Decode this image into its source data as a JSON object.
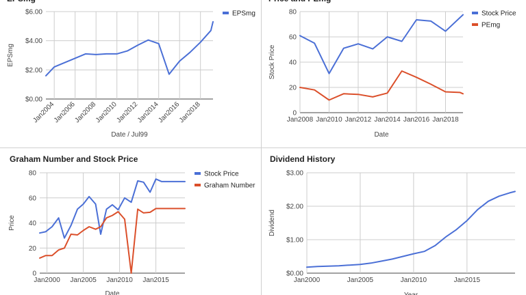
{
  "chart_data": [
    {
      "id": "eps",
      "type": "line",
      "title": "EPSmg",
      "xlabel": "Date / Jul99",
      "ylabel": "EPSmg",
      "xlim": [
        2003.2,
        2019.2
      ],
      "ylim": [
        0,
        6
      ],
      "y_ticks": [
        "$0.00",
        "$2.00",
        "$4.00",
        "$6.00"
      ],
      "y_tick_values": [
        0,
        2,
        4,
        6
      ],
      "x_ticks": [
        "Jan2004",
        "Jan2006",
        "Jan2008",
        "Jan2010",
        "Jan2012",
        "Jan2014",
        "Jan2016",
        "Jan2018"
      ],
      "x_tick_values": [
        2004,
        2006,
        2008,
        2010,
        2012,
        2014,
        2016,
        2018
      ],
      "x_tick_rotated": true,
      "legend_position": "right",
      "series": [
        {
          "name": "EPSmg",
          "color": "#4a6fd6",
          "x": [
            2003.2,
            2004.0,
            2005.0,
            2006.0,
            2007.0,
            2008.0,
            2009.0,
            2010.0,
            2011.0,
            2012.0,
            2013.0,
            2014.0,
            2015.0,
            2016.0,
            2017.0,
            2018.0,
            2019.0,
            2019.2
          ],
          "y": [
            1.6,
            2.2,
            2.5,
            2.8,
            3.1,
            3.05,
            3.1,
            3.1,
            3.3,
            3.7,
            4.05,
            3.8,
            1.7,
            2.6,
            3.2,
            3.9,
            4.7,
            5.3
          ]
        }
      ]
    },
    {
      "id": "pe",
      "type": "line",
      "title": "Price and PEmg",
      "xlabel": "Date",
      "ylabel": "Stock Price",
      "xlim": [
        2008,
        2019.2
      ],
      "ylim": [
        0,
        80
      ],
      "y_ticks": [
        "0",
        "20",
        "40",
        "60",
        "80"
      ],
      "y_tick_values": [
        0,
        20,
        40,
        60,
        80
      ],
      "x_ticks": [
        "Jan2008",
        "Jan2010",
        "Jan2012",
        "Jan2014",
        "Jan2016",
        "Jan2018"
      ],
      "x_tick_values": [
        2008,
        2010,
        2012,
        2014,
        2016,
        2018
      ],
      "x_tick_rotated": false,
      "legend_position": "right",
      "series": [
        {
          "name": "Stock Price",
          "color": "#4a6fd6",
          "x": [
            2008.0,
            2009.0,
            2010.0,
            2011.0,
            2012.0,
            2013.0,
            2014.0,
            2015.0,
            2016.0,
            2017.0,
            2018.0,
            2019.2
          ],
          "y": [
            61,
            55,
            31,
            51,
            54.5,
            50.5,
            60,
            56.5,
            73.5,
            72.5,
            64.5,
            77.5
          ]
        },
        {
          "name": "PEmg",
          "color": "#db4f2a",
          "x": [
            2008.0,
            2009.0,
            2010.0,
            2011.0,
            2012.0,
            2013.0,
            2014.0,
            2015.0,
            2016.0,
            2017.0,
            2018.0,
            2019.0,
            2019.2
          ],
          "y": [
            20,
            18,
            10,
            15,
            14.5,
            12.5,
            15.5,
            33,
            28,
            22.5,
            16.5,
            16,
            15
          ]
        }
      ]
    },
    {
      "id": "graham",
      "type": "line",
      "title": "Graham Number and Stock Price",
      "xlabel": "Date",
      "ylabel": "Price",
      "xlim": [
        1999,
        2019
      ],
      "ylim": [
        0,
        80
      ],
      "y_ticks": [
        "0",
        "20",
        "40",
        "60",
        "80"
      ],
      "y_tick_values": [
        0,
        20,
        40,
        60,
        80
      ],
      "x_ticks": [
        "Jan2000",
        "Jan2005",
        "Jan2010",
        "Jan2015"
      ],
      "x_tick_values": [
        2000,
        2005,
        2010,
        2015
      ],
      "x_tick_rotated": false,
      "legend_position": "right",
      "series": [
        {
          "name": "Stock Price",
          "color": "#4a6fd6",
          "x": [
            1999.0,
            1999.8,
            2000.7,
            2001.6,
            2002.4,
            2003.3,
            2004.2,
            2005.0,
            2005.8,
            2006.7,
            2007.4,
            2008.2,
            2009.0,
            2009.8,
            2010.7,
            2011.6,
            2012.5,
            2013.3,
            2014.2,
            2015.0,
            2015.8,
            2016.8,
            2017.6,
            2018.5,
            2019.0
          ],
          "y": [
            32,
            33,
            37,
            44,
            28,
            38,
            51,
            55,
            61,
            55,
            31,
            51,
            54.5,
            50.5,
            60,
            56.5,
            73.5,
            72.5,
            64.5,
            75,
            73,
            73,
            73,
            73,
            73
          ]
        },
        {
          "name": "Graham Number",
          "color": "#db4f2a",
          "x": [
            1999.0,
            1999.8,
            2000.7,
            2001.6,
            2002.4,
            2003.3,
            2004.2,
            2005.0,
            2005.8,
            2006.7,
            2007.4,
            2008.2,
            2009.0,
            2009.8,
            2010.7,
            2011.6,
            2012.5,
            2013.3,
            2014.2,
            2015.0,
            2015.8,
            2016.8,
            2017.6,
            2018.5,
            2019.0
          ],
          "y": [
            12,
            14,
            14,
            18.5,
            20,
            31,
            30.5,
            34,
            37,
            35,
            37,
            44,
            46,
            49,
            43,
            0,
            51,
            48,
            48.5,
            51.5,
            51.5,
            51.5,
            51.5,
            51.5,
            51.5
          ]
        }
      ]
    },
    {
      "id": "dividend",
      "type": "line",
      "title": "Dividend History",
      "xlabel": "Year",
      "ylabel": "Dividend",
      "xlim": [
        2000,
        2019.5
      ],
      "ylim": [
        0,
        3
      ],
      "y_ticks": [
        "$0.00",
        "$1.00",
        "$2.00",
        "$3.00"
      ],
      "y_tick_values": [
        0,
        1,
        2,
        3
      ],
      "x_ticks": [
        "Jan2000",
        "Jan2005",
        "Jan2010",
        "Jan2015"
      ],
      "x_tick_values": [
        2000,
        2005,
        2010,
        2015
      ],
      "x_tick_rotated": false,
      "legend_position": "none",
      "series": [
        {
          "name": "",
          "color": "#4a6fd6",
          "x": [
            2000,
            2001,
            2002,
            2003,
            2004,
            2005,
            2006,
            2007,
            2008,
            2009,
            2010,
            2011,
            2012,
            2013,
            2014,
            2015,
            2016,
            2017,
            2018,
            2019,
            2019.5
          ],
          "y": [
            0.18,
            0.2,
            0.21,
            0.22,
            0.24,
            0.26,
            0.3,
            0.36,
            0.42,
            0.5,
            0.58,
            0.65,
            0.82,
            1.08,
            1.3,
            1.57,
            1.9,
            2.15,
            2.3,
            2.4,
            2.44
          ]
        }
      ]
    }
  ]
}
